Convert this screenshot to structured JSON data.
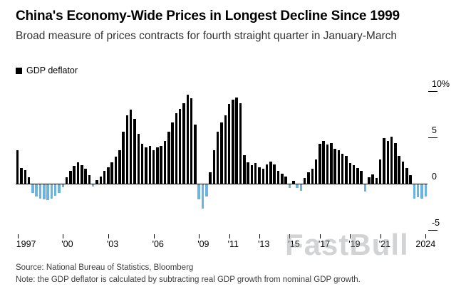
{
  "page": {
    "title": "China's Economy-Wide Prices in Longest Decline Since 1999",
    "subtitle": "Broad measure of prices contracts for fourth straight quarter in January-March"
  },
  "legend": {
    "label": "GDP deflator"
  },
  "footer": {
    "source": "Source: National Bureau of Statistics, Bloomberg",
    "note": "Note: the GDP deflator is calculated by subtracting real GDP growth from nominal GDP growth."
  },
  "watermark": {
    "text": "FastBull"
  },
  "chart_data": {
    "type": "bar",
    "title": "China's Economy-Wide Prices in Longest Decline Since 1999",
    "subtitle": "Broad measure of prices contracts for fourth straight quarter in January-March",
    "unit": "%",
    "ylim": [
      -5,
      10
    ],
    "grid": false,
    "legend_position": "top-left",
    "positive_color": "#000000",
    "negative_color": "#6ab4e4",
    "series": [
      {
        "name": "GDP deflator",
        "frequency": "quarterly",
        "start": "1997-Q1",
        "end": "2024-Q1",
        "values": [
          3.6,
          1.7,
          1.5,
          0.7,
          -0.9,
          -1.3,
          -1.5,
          -1.6,
          -1.7,
          -1.5,
          -1.2,
          -0.9,
          -0.3,
          0.7,
          1.4,
          1.9,
          2.3,
          2.0,
          1.6,
          0.9,
          -0.2,
          0.4,
          0.8,
          1.4,
          1.8,
          2.3,
          2.9,
          3.6,
          5.6,
          7.4,
          8.0,
          7.0,
          5.4,
          4.3,
          3.9,
          4.1,
          3.6,
          3.9,
          4.1,
          4.6,
          5.6,
          6.6,
          7.6,
          8.1,
          8.7,
          9.6,
          9.2,
          6.4,
          -1.6,
          -2.6,
          -1.3,
          1.2,
          3.6,
          5.6,
          6.6,
          7.4,
          8.6,
          9.1,
          9.3,
          8.7,
          3.1,
          2.3,
          2.0,
          2.2,
          1.8,
          1.6,
          2.1,
          2.4,
          2.1,
          1.4,
          1.1,
          0.8,
          -0.4,
          0.3,
          -0.4,
          -0.7,
          0.6,
          1.2,
          1.6,
          2.6,
          4.3,
          4.6,
          4.2,
          4.4,
          3.8,
          3.6,
          3.2,
          3.0,
          2.2,
          2.0,
          1.7,
          1.4,
          -0.8,
          0.7,
          1.0,
          0.6,
          2.6,
          4.9,
          4.6,
          5.1,
          4.4,
          3.0,
          2.4,
          1.7,
          0.9,
          -1.5,
          -1.4,
          -1.5,
          -1.3
        ]
      }
    ],
    "yticks": [
      {
        "value": 10,
        "label": "10%"
      },
      {
        "value": 5,
        "label": "5"
      },
      {
        "value": 0,
        "label": "0"
      },
      {
        "value": -5,
        "label": "-5"
      }
    ],
    "xticks": [
      {
        "index": 0,
        "label": "1997"
      },
      {
        "index": 12,
        "label": "'00"
      },
      {
        "index": 24,
        "label": "'03"
      },
      {
        "index": 36,
        "label": "'06"
      },
      {
        "index": 48,
        "label": "'09"
      },
      {
        "index": 56,
        "label": "'11"
      },
      {
        "index": 64,
        "label": "'13"
      },
      {
        "index": 72,
        "label": "'15"
      },
      {
        "index": 80,
        "label": "'17"
      },
      {
        "index": 88,
        "label": "'19"
      },
      {
        "index": 96,
        "label": "'21"
      },
      {
        "index": 108,
        "label": "2024"
      }
    ]
  }
}
